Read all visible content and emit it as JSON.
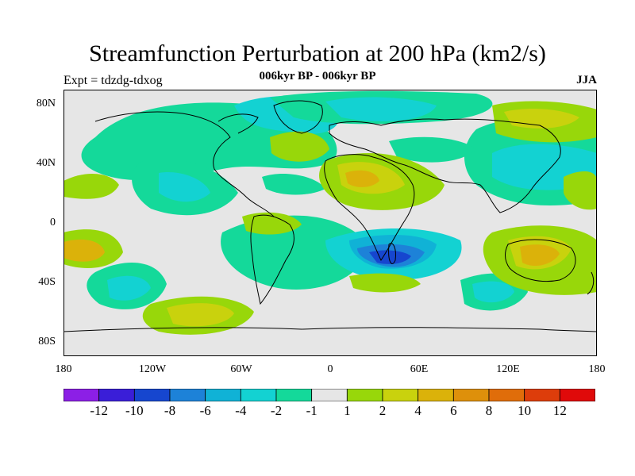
{
  "title": "Streamfunction Perturbation at 200 hPa (km2/s)",
  "subtitle_center": "006kyr BP - 006kyr BP",
  "subtitle_left": "Expt = tdzdg-tdxog",
  "subtitle_right": "JJA",
  "lat_labels": [
    "80N",
    "40N",
    "0",
    "40S",
    "80S"
  ],
  "lon_labels": [
    "180",
    "120W",
    "60W",
    "0",
    "60E",
    "120E",
    "180"
  ],
  "colorbar": {
    "colors": [
      "#8c1fe6",
      "#3a1ed8",
      "#1646cf",
      "#1d82d8",
      "#10b2d6",
      "#13d2d2",
      "#14d99a",
      "#e6e6e6",
      "#98d70a",
      "#c9d20d",
      "#dbb20a",
      "#de900b",
      "#e06d0a",
      "#dd3d0b",
      "#e00a0a"
    ],
    "labels": [
      "-12",
      "-10",
      "-8",
      "-6",
      "-4",
      "-2",
      "-1",
      "1",
      "2",
      "4",
      "6",
      "8",
      "10",
      "12"
    ]
  },
  "legend_colors": {
    "neutral": "#e6e6e6",
    "pos2": "#98d70a",
    "pos4": "#c9d20d",
    "pos6": "#dbb20a",
    "neg1": "#14d99a",
    "neg2": "#13d2d2",
    "neg4": "#10b2d6",
    "neg6": "#1d82d8",
    "neg8": "#1646cf"
  }
}
